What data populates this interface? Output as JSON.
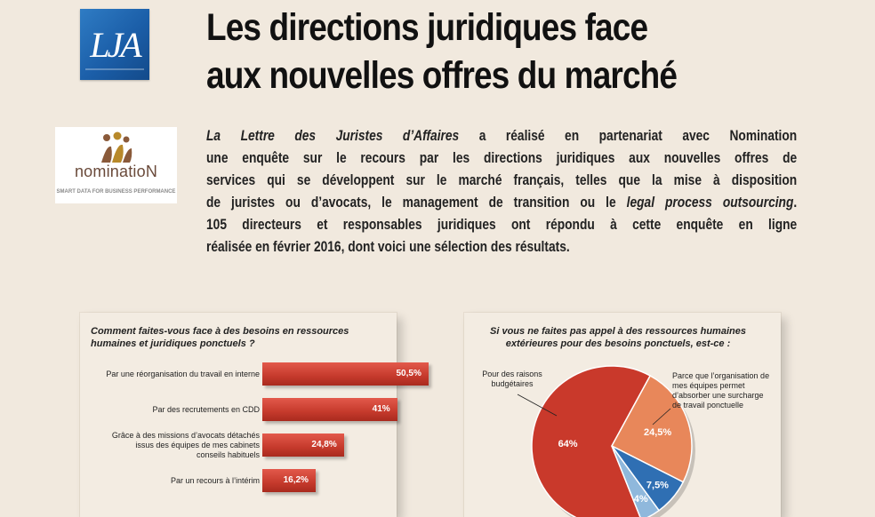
{
  "header": {
    "logo_text": "LJA",
    "title_line1": "Les directions juridiques face",
    "title_line2": "aux nouvelles offres du marché"
  },
  "partner_logo": {
    "word": "nominatioN",
    "tagline": "SMART DATA FOR BUSINESS PERFORMANCE"
  },
  "intro": {
    "lines": [
      [
        "La Lettre des Juristes d’Affaires",
        " a réalisé en partenariat avec Nomination"
      ],
      [
        "",
        "une enquête sur le recours par les directions juridiques aux nouvelles offres de"
      ],
      [
        "",
        "services qui se développent sur le marché français, telles que la mise à disposition"
      ],
      [
        "",
        "de juristes ou d’avocats, le management de transition ou le "
      ],
      [
        "",
        "105 directeurs et responsables juridiques ont répondu à cette enquête en ligne"
      ],
      [
        "",
        "réalisée en février 2016, dont voici une sélection des résultats."
      ]
    ],
    "line4_italic": "legal process outsourcing",
    "line4_end": "."
  },
  "chart_data": [
    {
      "type": "bar",
      "title": "Comment faites-vous face à des besoins en ressources humaines et juridiques ponctuels ?",
      "categories": [
        "Par une réorganisation du travail en interne",
        "Par des recrutements en CDD",
        "Grâce à des missions d’avocats détachés issus des équipes de mes cabinets conseils habituels",
        "Par un recours à l’intérim"
      ],
      "values": [
        50.5,
        41,
        24.8,
        16.2
      ],
      "value_labels": [
        "50,5%",
        "41%",
        "24,8%",
        "16,2%"
      ],
      "color": "#c9392b"
    },
    {
      "type": "pie",
      "title": "Si vous ne faites pas appel à des ressources humaines extérieures pour des besoins ponctuels, est-ce :",
      "slices": [
        {
          "label": "Pour des raisons budgétaires",
          "value": 64,
          "value_label": "64%",
          "color": "#c9392b"
        },
        {
          "label": "Parce que l’organisation de mes équipes permet d’absorber une surcharge de travail ponctuelle",
          "value": 24.5,
          "value_label": "24,5%",
          "color": "#e8875a"
        },
        {
          "label": "",
          "value": 7.5,
          "value_label": "7,5%",
          "color": "#2f6fb3"
        },
        {
          "label": "",
          "value": 4,
          "value_label": "4%",
          "color": "#8fb8dc"
        }
      ]
    }
  ]
}
